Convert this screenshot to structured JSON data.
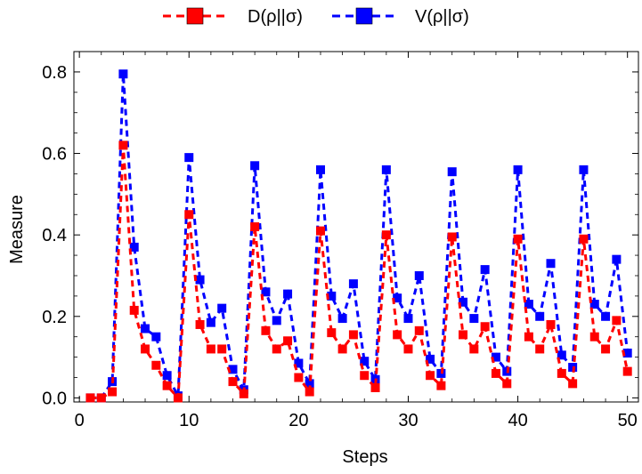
{
  "chart_data": {
    "type": "line",
    "xlabel": "Steps",
    "ylabel": "Measure",
    "xlim": [
      -0.5,
      51
    ],
    "ylim": [
      -0.01,
      0.85
    ],
    "x_ticks": [
      0,
      10,
      20,
      30,
      40,
      50
    ],
    "y_ticks": [
      0.0,
      0.2,
      0.4,
      0.6,
      0.8
    ],
    "x_tick_labels": [
      "0",
      "10",
      "20",
      "30",
      "40",
      "50"
    ],
    "y_tick_labels": [
      "0.0",
      "0.2",
      "0.4",
      "0.6",
      "0.8"
    ],
    "grid": false,
    "legend_position": "top-center",
    "x": [
      1,
      2,
      3,
      4,
      5,
      6,
      7,
      8,
      9,
      10,
      11,
      12,
      13,
      14,
      15,
      16,
      17,
      18,
      19,
      20,
      21,
      22,
      23,
      24,
      25,
      26,
      27,
      28,
      29,
      30,
      31,
      32,
      33,
      34,
      35,
      36,
      37,
      38,
      39,
      40,
      41,
      42,
      43,
      44,
      45,
      46,
      47,
      48,
      49,
      50
    ],
    "series": [
      {
        "name": "D(ρ||σ)",
        "legend_label": "D(ρ||σ)",
        "color": "#ff0000",
        "values": [
          0.0,
          0.0,
          0.015,
          0.62,
          0.215,
          0.12,
          0.08,
          0.03,
          0.0,
          0.45,
          0.18,
          0.12,
          0.12,
          0.04,
          0.01,
          0.42,
          0.165,
          0.12,
          0.14,
          0.05,
          0.015,
          0.41,
          0.16,
          0.12,
          0.155,
          0.055,
          0.025,
          0.4,
          0.155,
          0.12,
          0.165,
          0.055,
          0.03,
          0.395,
          0.155,
          0.12,
          0.175,
          0.06,
          0.035,
          0.39,
          0.15,
          0.12,
          0.18,
          0.06,
          0.035,
          0.39,
          0.15,
          0.12,
          0.19,
          0.065
        ]
      },
      {
        "name": "V(ρ||σ)",
        "legend_label": "V(ρ||σ)",
        "color": "#0000ff",
        "values": [
          0.0,
          0.0,
          0.04,
          0.795,
          0.37,
          0.17,
          0.15,
          0.055,
          0.005,
          0.59,
          0.29,
          0.185,
          0.22,
          0.07,
          0.02,
          0.57,
          0.26,
          0.19,
          0.255,
          0.085,
          0.035,
          0.56,
          0.25,
          0.195,
          0.28,
          0.09,
          0.045,
          0.56,
          0.245,
          0.195,
          0.3,
          0.095,
          0.06,
          0.555,
          0.235,
          0.195,
          0.315,
          0.1,
          0.065,
          0.56,
          0.23,
          0.2,
          0.33,
          0.105,
          0.075,
          0.56,
          0.23,
          0.2,
          0.34,
          0.11
        ]
      }
    ]
  }
}
